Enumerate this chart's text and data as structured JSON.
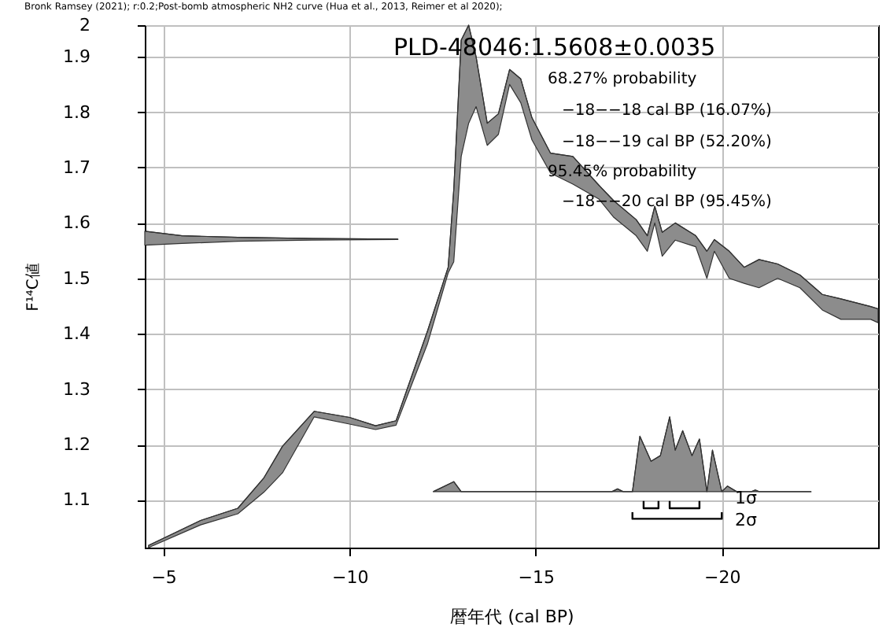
{
  "chart_data": {
    "type": "line",
    "title": "Bronk Ramsey (2021); r:0.2;Post-bomb atmospheric NH2 curve (Hua et al., 2013, Reimer et al 2020);",
    "xlabel": "暦年代 (cal BP)",
    "ylabel": "F¹⁴C値",
    "xlim": [
      -4.5,
      -24.2
    ],
    "xticks": [
      -5,
      -10,
      -15,
      -20
    ],
    "ylim": [
      1.014,
      1.957
    ],
    "yticks": [
      1.1,
      1.2,
      1.3,
      1.4,
      1.5,
      1.6,
      1.7,
      1.8,
      1.9,
      {
        "value": 1.957,
        "label": "2"
      }
    ],
    "grid": true,
    "marker": "none",
    "series": [
      {
        "color": "#333333",
        "x": [
          -4.6,
          -6.0,
          -7.0,
          -7.7,
          -8.2,
          -9.05,
          -10.0,
          -10.7,
          -11.25,
          -12.1,
          -12.65,
          -12.8,
          -13.0,
          -13.2,
          -13.4,
          -13.7,
          -14.0,
          -14.3,
          -14.6,
          -14.9,
          -15.4,
          -16.0,
          -16.7,
          -17.1,
          -17.7,
          -18.0,
          -18.2,
          -18.4,
          -18.75,
          -19.3,
          -19.6,
          -19.8,
          -20.2,
          -20.6,
          -21.0,
          -21.5,
          -22.1,
          -22.7,
          -23.2,
          -24.0,
          -24.2
        ],
        "values": [
          1.018,
          1.063,
          1.085,
          1.14,
          1.197,
          1.26,
          1.249,
          1.234,
          1.243,
          1.406,
          1.52,
          1.66,
          1.93,
          1.957,
          1.9,
          1.78,
          1.797,
          1.877,
          1.86,
          1.79,
          1.726,
          1.72,
          1.668,
          1.64,
          1.606,
          1.577,
          1.63,
          1.583,
          1.6,
          1.577,
          1.549,
          1.57,
          1.549,
          1.52,
          1.534,
          1.526,
          1.506,
          1.471,
          1.463,
          1.449,
          1.445
        ],
        "upper": [
          1.018,
          1.063,
          1.085,
          1.14,
          1.197,
          1.26,
          1.249,
          1.234,
          1.243,
          1.406,
          1.52,
          1.66,
          1.93,
          1.957,
          1.9,
          1.78,
          1.797,
          1.877,
          1.86,
          1.79,
          1.726,
          1.72,
          1.668,
          1.64,
          1.606,
          1.577,
          1.63,
          1.583,
          1.6,
          1.577,
          1.549,
          1.57,
          1.549,
          1.52,
          1.534,
          1.526,
          1.506,
          1.471,
          1.463,
          1.449,
          1.445
        ],
        "lower": [
          1.014,
          1.055,
          1.075,
          1.114,
          1.149,
          1.25,
          1.237,
          1.227,
          1.235,
          1.383,
          1.51,
          1.53,
          1.72,
          1.78,
          1.81,
          1.74,
          1.76,
          1.85,
          1.817,
          1.75,
          1.69,
          1.67,
          1.643,
          1.61,
          1.577,
          1.549,
          1.6,
          1.54,
          1.569,
          1.557,
          1.5,
          1.549,
          1.5,
          1.491,
          1.483,
          1.5,
          1.483,
          1.443,
          1.426,
          1.426,
          1.42
        ]
      },
      {
        "color": "#333333",
        "x": [
          -4.5,
          -5.5,
          -7.0,
          -9.0,
          -11.3
        ],
        "values": [
          1.585,
          1.577,
          1.574,
          1.572,
          1.571
        ],
        "upper": [
          1.585,
          1.577,
          1.574,
          1.572,
          1.571
        ],
        "lower": [
          1.56,
          1.563,
          1.567,
          1.569,
          1.57
        ]
      },
      {
        "color": "#333333",
        "x": [
          -12.25,
          -12.8,
          -13.0,
          -17.05,
          -17.2,
          -17.35,
          -17.6,
          -17.8,
          -18.1,
          -18.35,
          -18.6,
          -18.75,
          -18.95,
          -19.2,
          -19.4,
          -19.6,
          -19.75,
          -20.0,
          -20.15,
          -20.4,
          -20.8,
          -20.9,
          -21.0,
          -22.4
        ],
        "values": [
          1.115,
          1.133,
          1.115,
          1.115,
          1.12,
          1.115,
          1.115,
          1.215,
          1.17,
          1.18,
          1.25,
          1.19,
          1.225,
          1.18,
          1.21,
          1.115,
          1.19,
          1.115,
          1.125,
          1.115,
          1.115,
          1.118,
          1.115,
          1.115
        ],
        "upper": [
          1.115,
          1.133,
          1.115,
          1.115,
          1.12,
          1.115,
          1.115,
          1.215,
          1.17,
          1.18,
          1.25,
          1.19,
          1.225,
          1.18,
          1.21,
          1.115,
          1.19,
          1.115,
          1.125,
          1.115,
          1.115,
          1.118,
          1.115,
          1.115
        ],
        "lower": [
          1.115,
          1.115,
          1.115,
          1.115,
          1.115,
          1.115,
          1.115,
          1.115,
          1.115,
          1.115,
          1.115,
          1.115,
          1.115,
          1.115,
          1.115,
          1.115,
          1.115,
          1.115,
          1.115,
          1.115,
          1.115,
          1.115,
          1.115,
          1.115
        ]
      },
      {
        "type": "line",
        "color": "#000000",
        "x": [
          -17.9,
          -17.9,
          -18.3,
          -18.3
        ],
        "values": [
          1.098,
          1.085,
          1.085,
          1.098
        ]
      },
      {
        "type": "line",
        "color": "#000000",
        "x": [
          -18.6,
          -18.6,
          -19.4,
          -19.4
        ],
        "values": [
          1.098,
          1.085,
          1.085,
          1.098
        ]
      },
      {
        "type": "line",
        "color": "#000000",
        "x": [
          -17.6,
          -17.6,
          -20.0,
          -20.0
        ],
        "values": [
          1.078,
          1.066,
          1.066,
          1.078
        ]
      }
    ],
    "annotations": [
      "PLD-48046:1.5608±0.0035",
      "68.27% probability",
      "−18−−18 cal BP (16.07%)",
      "−18−−19 cal BP (52.20%)",
      "95.45% probability",
      "−18−−20 cal BP (95.45%)",
      "1σ",
      "2σ"
    ]
  }
}
